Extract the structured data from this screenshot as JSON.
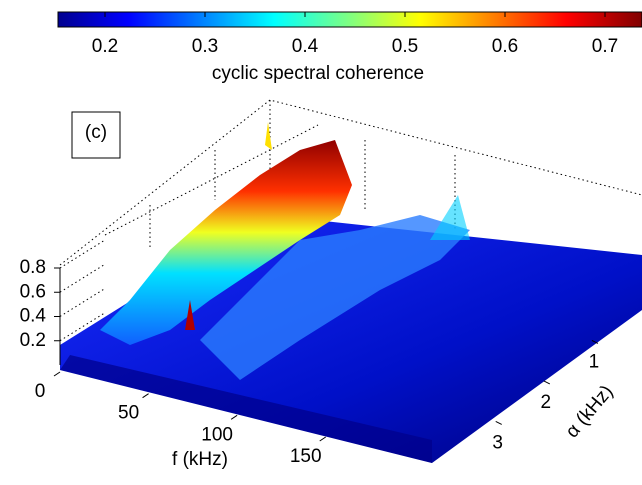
{
  "chart_data": {
    "type": "surface3d",
    "annotation": "(c)",
    "colorbar": {
      "label": "cyclic spectral coherence",
      "clim": [
        0.153,
        0.737
      ],
      "ticks": [
        0.2,
        0.3,
        0.4,
        0.5,
        0.6,
        0.7
      ],
      "colormap": "jet"
    },
    "xlabel": "f (kHz)",
    "xlim": [
      0,
      210
    ],
    "xticks": [
      0,
      50,
      100,
      150
    ],
    "ylabel": "α (kHz)",
    "ylim": [
      0,
      4.2
    ],
    "yticks": [
      1,
      2,
      3
    ],
    "zlim": [
      0,
      0.8
    ],
    "zticks": [
      0.2,
      0.4,
      0.6,
      0.8
    ],
    "grid": true
  }
}
